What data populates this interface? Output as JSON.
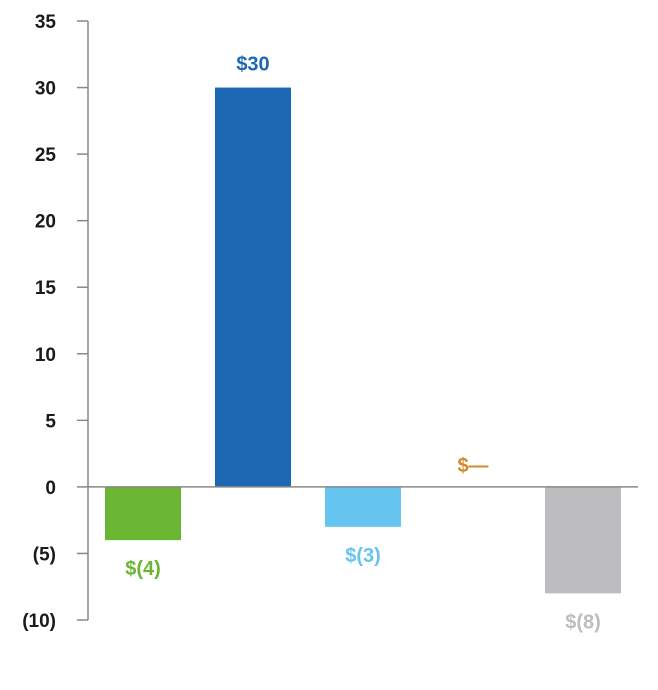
{
  "chart_data": {
    "type": "bar",
    "title": "",
    "xlabel": "",
    "ylabel": "",
    "ylim": [
      -10,
      35
    ],
    "yticks": [
      35,
      30,
      25,
      20,
      15,
      10,
      5,
      0,
      -5,
      -10
    ],
    "ytick_labels": [
      "35",
      "30",
      "25",
      "20",
      "15",
      "10",
      "5",
      "0",
      "(5)",
      "(10)"
    ],
    "grid": false,
    "categories": [
      "",
      "",
      "",
      "",
      ""
    ],
    "values": [
      -4,
      30,
      -3,
      0,
      -8
    ],
    "data_labels": [
      "$(4)",
      "$30",
      "$(3)",
      "$—",
      "$(8)"
    ],
    "colors": [
      "#6ab633",
      "#1d68b2",
      "#66c4f0",
      "#d28a2a",
      "#bdbdbf"
    ]
  }
}
